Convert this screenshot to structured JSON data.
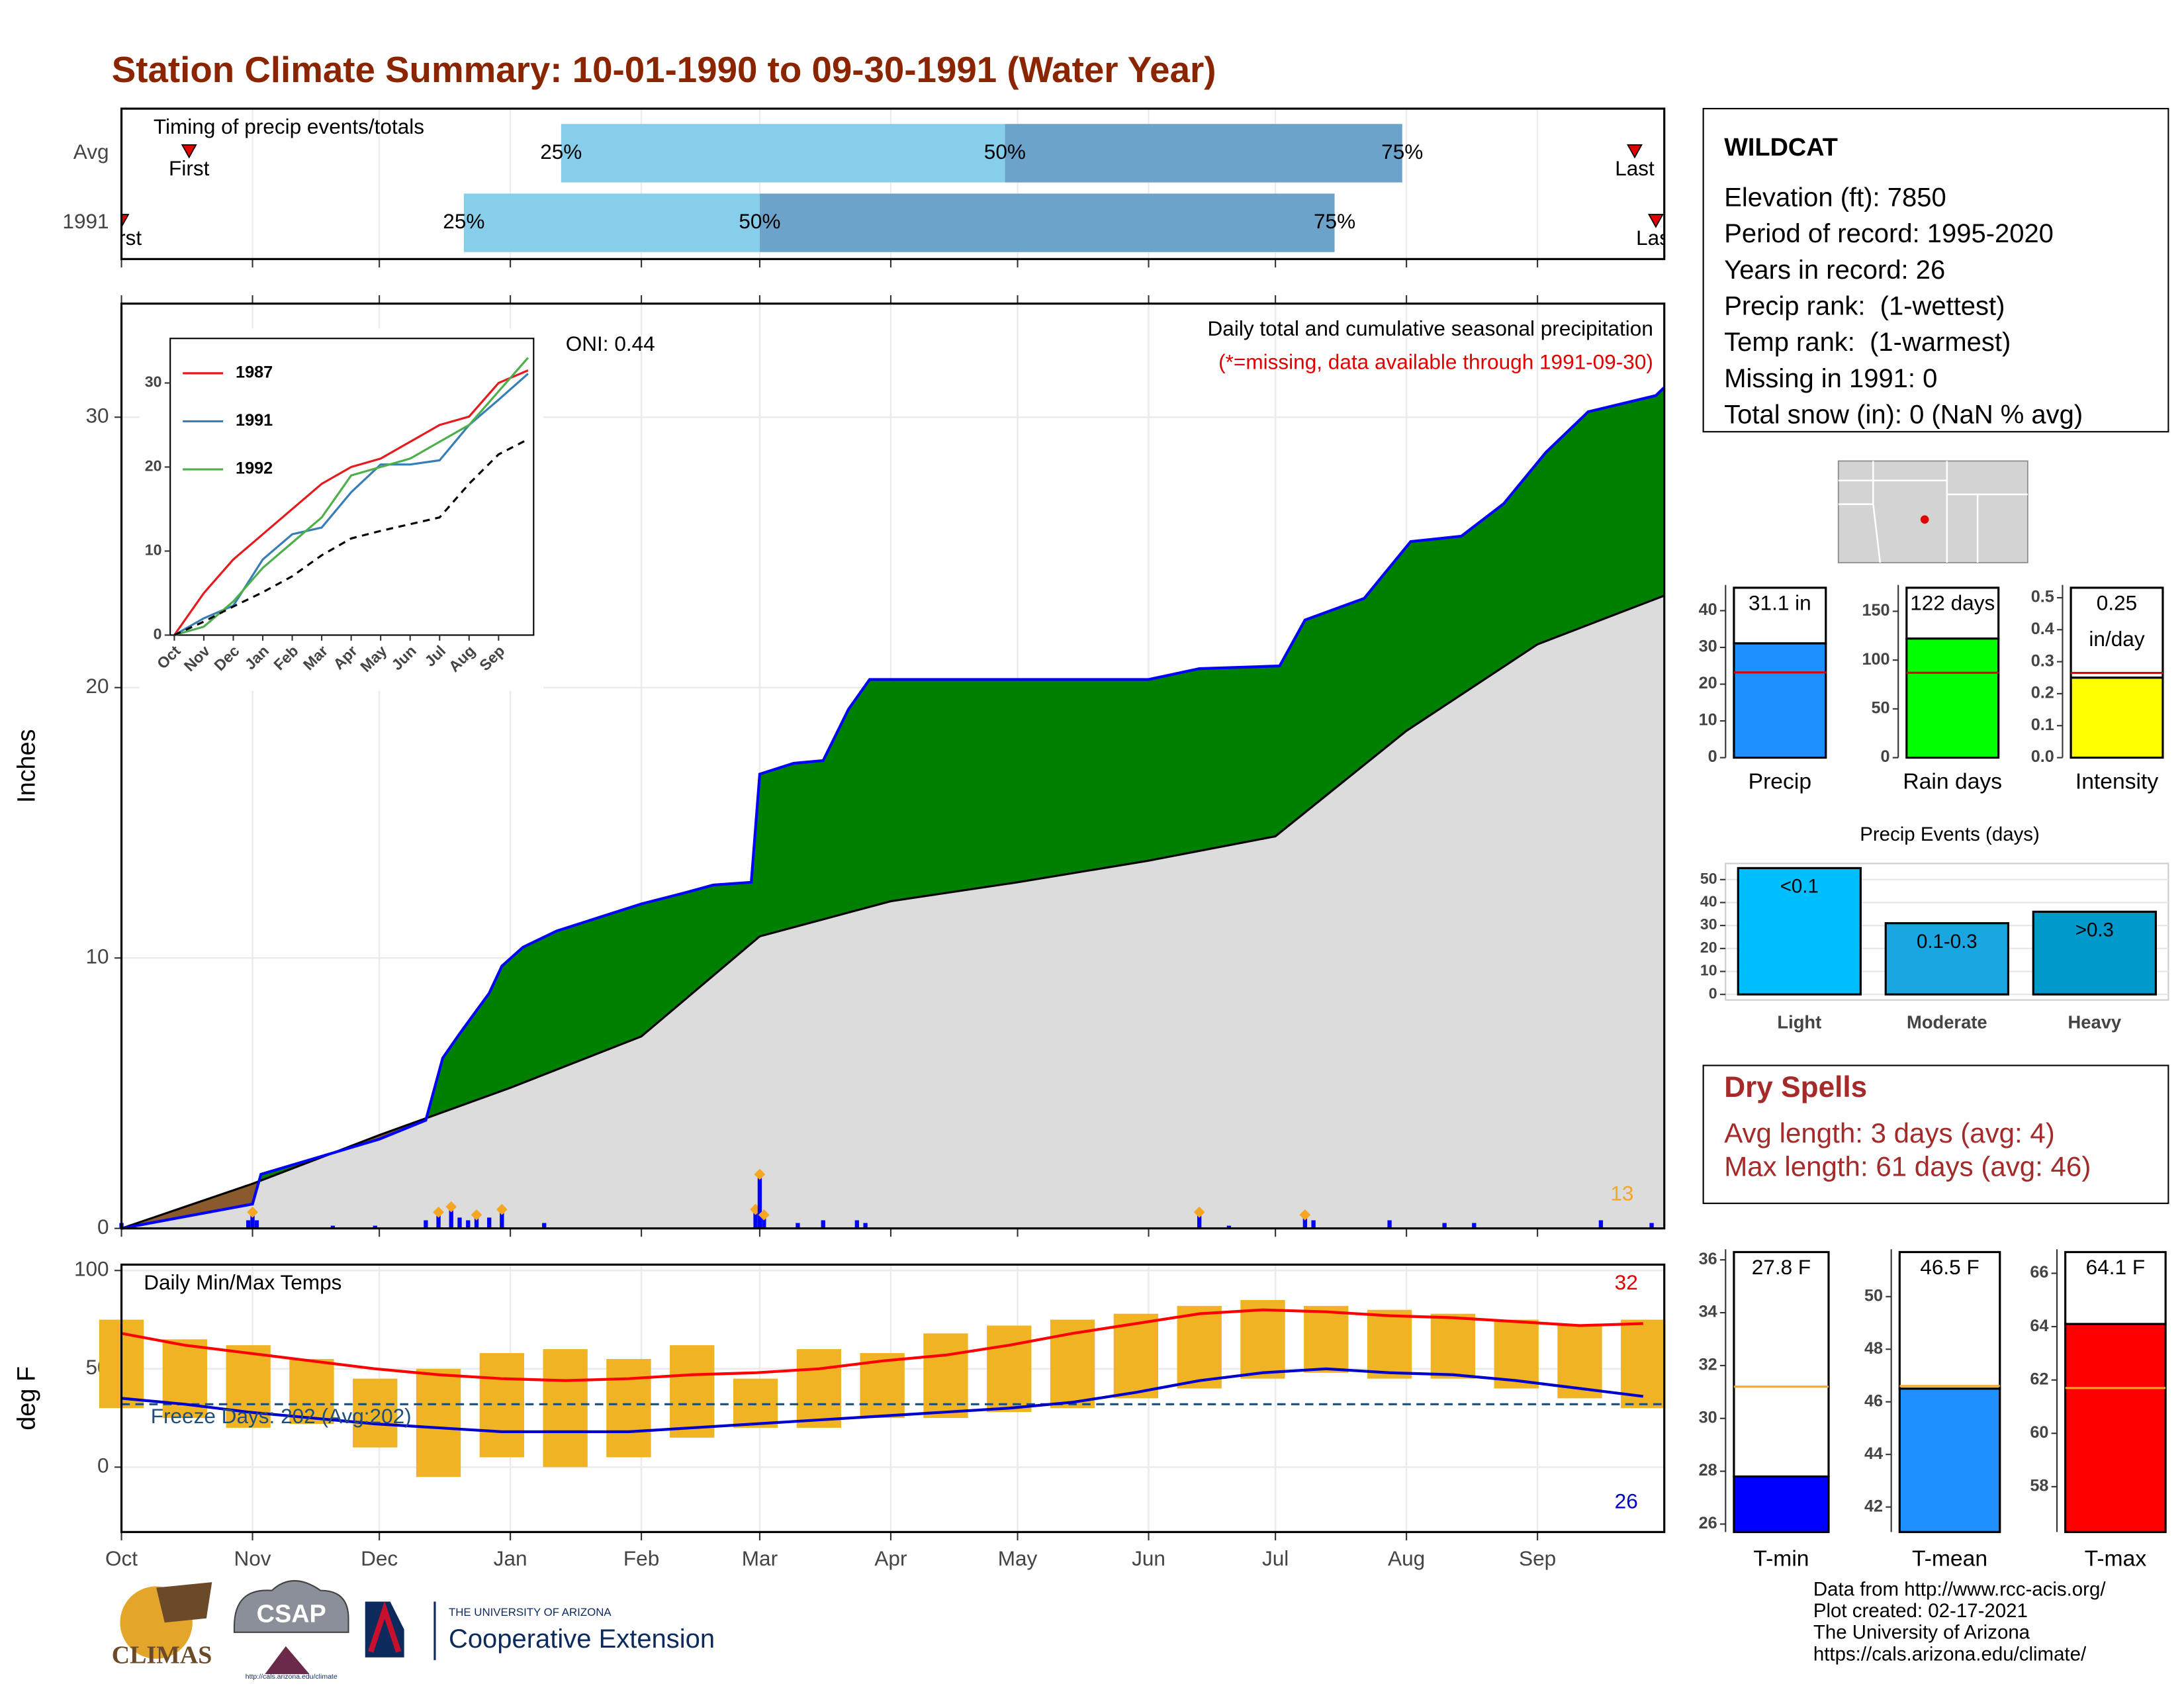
{
  "title": "Station Climate Summary: 10-01-1990 to 09-30-1991 (Water Year)",
  "chart_data": [
    {
      "type": "timing",
      "annotation": "Timing of precip events/totals",
      "categories": [
        "Avg",
        "1991"
      ],
      "xlim": [
        0,
        365
      ],
      "first": [
        16,
        0
      ],
      "q25": [
        104,
        81
      ],
      "q50": [
        209,
        151
      ],
      "q75": [
        303,
        287
      ],
      "last": [
        358,
        363
      ],
      "labels": {
        "first": "First",
        "last": "Last",
        "q25": "25%",
        "q50": "50%",
        "q75": "75%"
      },
      "colors": {
        "q25": "#87ceeb",
        "q50": "#6ca3cb",
        "marker": "#e00000"
      }
    },
    {
      "type": "cumulative",
      "title": "Daily total and cumulative seasonal precipitation",
      "subtitle": "(*=missing, data available through 1991-09-30)",
      "annotation": "ONI: 0.44",
      "count_label": 13,
      "y_label": "Inches",
      "xlim": [
        0,
        365
      ],
      "ylim": [
        0,
        34.2
      ],
      "yticks": [
        0,
        10,
        20,
        30
      ],
      "series": [
        {
          "x": [
            0,
            31,
            33,
            61,
            72,
            76,
            80,
            87,
            90,
            95,
            103,
            113,
            123,
            133,
            140,
            149,
            151,
            159,
            166,
            172,
            177,
            202,
            243,
            255,
            274,
            280,
            294,
            305,
            317,
            327,
            337,
            347,
            363,
            365
          ],
          "values": [
            0,
            0.9,
            2.0,
            3.3,
            4.0,
            6.3,
            7.2,
            8.7,
            9.7,
            10.4,
            11.0,
            11.5,
            12.0,
            12.4,
            12.7,
            12.8,
            16.8,
            17.2,
            17.3,
            19.2,
            20.3,
            20.3,
            20.3,
            20.7,
            20.8,
            22.5,
            23.3,
            25.4,
            25.6,
            26.8,
            28.7,
            30.2,
            30.8,
            31.1
          ],
          "color": "#0000ff",
          "above_color": "#008000",
          "below_color": "#8b5a2b"
        },
        {
          "x": [
            0,
            31,
            61,
            92,
            123,
            151,
            182,
            212,
            243,
            273,
            304,
            335,
            365
          ],
          "values": [
            0,
            1.65,
            3.45,
            5.2,
            7.1,
            10.8,
            12.1,
            12.8,
            13.6,
            14.5,
            18.4,
            21.6,
            23.4
          ],
          "color": "#000000",
          "fill": "#dcdcdc"
        }
      ],
      "daily": {
        "x": [
          0,
          30,
          31,
          32,
          50,
          60,
          72,
          75,
          78,
          80,
          82,
          84,
          87,
          90,
          100,
          150,
          151,
          152,
          160,
          166,
          174,
          176,
          255,
          262,
          280,
          282,
          300,
          313,
          320,
          350,
          362
        ],
        "values": [
          0.2,
          0.3,
          0.6,
          0.3,
          0.1,
          0.1,
          0.3,
          0.6,
          0.8,
          0.4,
          0.3,
          0.5,
          0.4,
          0.7,
          0.2,
          0.7,
          2.0,
          0.5,
          0.2,
          0.3,
          0.3,
          0.2,
          0.6,
          0.1,
          0.5,
          0.3,
          0.3,
          0.2,
          0.2,
          0.3,
          0.2
        ],
        "color": "#0000ff",
        "highlight_color": "#f5a623"
      }
    },
    {
      "type": "line",
      "xlim": [
        -0.14,
        12.19
      ],
      "ylim": [
        0,
        35.3
      ],
      "yticks": [
        0,
        10,
        20,
        30
      ],
      "xticks": [
        {
          "value": 0,
          "label": "Oct"
        },
        {
          "value": 1,
          "label": "Nov"
        },
        {
          "value": 2,
          "label": "Dec"
        },
        {
          "value": 3,
          "label": "Jan"
        },
        {
          "value": 4,
          "label": "Feb"
        },
        {
          "value": 5,
          "label": "Mar"
        },
        {
          "value": 6,
          "label": "Apr"
        },
        {
          "value": 7,
          "label": "May"
        },
        {
          "value": 8,
          "label": "Jun"
        },
        {
          "value": 9,
          "label": "Jul"
        },
        {
          "value": 10,
          "label": "Aug"
        },
        {
          "value": 11,
          "label": "Sep"
        }
      ],
      "x": [
        0,
        1,
        2,
        3,
        4,
        5,
        6,
        7,
        8,
        9,
        10,
        11,
        12
      ],
      "series": [
        {
          "name": "1987",
          "color": "#e41a1c",
          "values": [
            0,
            5,
            9,
            12,
            15,
            18,
            20,
            21,
            23,
            25,
            26,
            30,
            31.5
          ]
        },
        {
          "name": "1991",
          "color": "#377eb8",
          "values": [
            0,
            2,
            3.5,
            9,
            12,
            12.8,
            17,
            20.3,
            20.3,
            20.8,
            25,
            28,
            31.1
          ]
        },
        {
          "name": "1992",
          "color": "#4daf4a",
          "values": [
            0,
            1,
            4,
            8,
            11,
            14,
            19,
            20,
            21,
            23,
            25,
            29,
            33
          ]
        },
        {
          "color": "#000000",
          "dashed": true,
          "values": [
            0,
            1.6,
            3.4,
            5.1,
            7,
            9.5,
            11.5,
            12.4,
            13.2,
            14,
            18,
            21.5,
            23.3
          ]
        }
      ]
    },
    {
      "type": "temps",
      "annotation": "Daily Min/Max Temps",
      "freeze_label": "Freeze Days: 202 (Avg:202)",
      "high_count": 32,
      "low_count": 26,
      "y_label": "deg F",
      "xlim": [
        0,
        365
      ],
      "ylim": [
        -33,
        103
      ],
      "yticks": [
        0,
        50,
        100
      ],
      "reference_line": 32,
      "xticks": [
        {
          "value": 0,
          "label": "Oct"
        },
        {
          "value": 31,
          "label": "Nov"
        },
        {
          "value": 61,
          "label": "Dec"
        },
        {
          "value": 92,
          "label": "Jan"
        },
        {
          "value": 123,
          "label": "Feb"
        },
        {
          "value": 151,
          "label": "Mar"
        },
        {
          "value": 182,
          "label": "Apr"
        },
        {
          "value": 212,
          "label": "May"
        },
        {
          "value": 243,
          "label": "Jun"
        },
        {
          "value": 273,
          "label": "Jul"
        },
        {
          "value": 304,
          "label": "Aug"
        },
        {
          "value": 335,
          "label": "Sep"
        }
      ],
      "x": [
        0,
        15,
        30,
        45,
        60,
        75,
        90,
        105,
        120,
        135,
        150,
        165,
        180,
        195,
        210,
        225,
        240,
        255,
        270,
        285,
        300,
        315,
        330,
        345,
        360
      ],
      "daily_max": [
        75,
        65,
        62,
        55,
        45,
        50,
        58,
        60,
        55,
        62,
        45,
        60,
        58,
        68,
        72,
        75,
        78,
        82,
        85,
        82,
        80,
        78,
        75,
        72,
        75
      ],
      "daily_min": [
        30,
        25,
        20,
        22,
        10,
        -5,
        5,
        0,
        5,
        15,
        20,
        20,
        25,
        25,
        28,
        30,
        35,
        40,
        45,
        48,
        45,
        45,
        40,
        35,
        30
      ],
      "bar_color": "#f0b323",
      "series": [
        {
          "color": "#ff0000",
          "values": [
            68,
            62,
            58,
            54,
            50,
            47,
            45,
            44,
            45,
            47,
            48,
            50,
            54,
            57,
            62,
            68,
            73,
            78,
            80,
            79,
            77,
            76,
            74,
            72,
            73
          ]
        },
        {
          "color": "#0000cc",
          "values": [
            35,
            32,
            28,
            25,
            22,
            20,
            18,
            18,
            18,
            20,
            22,
            24,
            26,
            28,
            30,
            33,
            38,
            44,
            48,
            50,
            48,
            47,
            44,
            40,
            36
          ]
        }
      ]
    },
    {
      "type": "summary_bar",
      "label": "Precip",
      "value": 31.1,
      "value_label": [
        "31.1 in"
      ],
      "avg": 23.2,
      "ylim": [
        0,
        47
      ],
      "yticks": [
        0,
        10,
        20,
        30,
        40
      ],
      "color": "#1e90ff",
      "avg_color": "#e00000"
    },
    {
      "type": "summary_bar",
      "label": "Rain days",
      "value": 122,
      "value_label": [
        "122 days"
      ],
      "avg": 87,
      "ylim": [
        0,
        177
      ],
      "yticks": [
        0,
        50,
        100,
        150
      ],
      "color": "#00ff00",
      "avg_color": "#e00000"
    },
    {
      "type": "summary_bar",
      "label": "Intensity",
      "value": 0.25,
      "value_label": [
        "0.25",
        "in/day"
      ],
      "avg": 0.265,
      "ylim": [
        0,
        0.54
      ],
      "yticks": [
        {
          "value": 0,
          "label": "0.0"
        },
        0.1,
        0.2,
        0.3,
        0.4,
        0.5
      ],
      "color": "#ffff00",
      "avg_color": "#e00000"
    },
    {
      "type": "bar",
      "title": "Precip Events (days)",
      "categories": [
        "Light",
        "Moderate",
        "Heavy"
      ],
      "values": [
        55,
        31,
        36
      ],
      "bin_labels": [
        "<0.1",
        "0.1-0.3",
        ">0.3"
      ],
      "ylim": [
        0,
        57
      ],
      "yticks": [
        0,
        10,
        20,
        30,
        40,
        50
      ],
      "colors": [
        "#00bfff",
        "#1aa6e0",
        "#0099cc"
      ]
    },
    {
      "type": "summary_bar",
      "label": "T-min",
      "value": 27.8,
      "value_label": [
        "27.8 F"
      ],
      "avg": 31.2,
      "ylim": [
        25.7,
        36.4
      ],
      "yticks": [
        26,
        28,
        30,
        32,
        34,
        36
      ],
      "color": "#0000ff",
      "avg_color": "#f5a623"
    },
    {
      "type": "summary_bar",
      "label": "T-mean",
      "value": 46.5,
      "value_label": [
        "46.5 F"
      ],
      "avg": 46.6,
      "ylim": [
        41.05,
        51.8
      ],
      "yticks": [
        42,
        44,
        46,
        48,
        50
      ],
      "color": "#1e90ff",
      "avg_color": "#f5a623"
    },
    {
      "type": "summary_bar",
      "label": "T-max",
      "value": 64.1,
      "value_label": [
        "64.1 F"
      ],
      "avg": 61.7,
      "ylim": [
        56.3,
        66.9
      ],
      "yticks": [
        58,
        60,
        62,
        64,
        66
      ],
      "color": "#ff0000",
      "avg_color": "#f5a623"
    }
  ],
  "station": {
    "name": "WILDCAT",
    "lines": [
      "Elevation (ft): 7850",
      "Period of record: 1995-2020",
      "Years in record: 26",
      "Precip rank:  (1-wettest)",
      "Temp rank:  (1-warmest)",
      "Missing in 1991: 0",
      "Total snow (in): 0 (NaN % avg)"
    ]
  },
  "dry_spells": {
    "title": "Dry Spells",
    "lines": [
      "Avg length: 3 days (avg: 4)",
      "Max length: 61 days (avg: 46)"
    ]
  },
  "footer": [
    "Data from http://www.rcc-acis.org/",
    "Plot created: 02-17-2021",
    "The University of Arizona",
    "https://cals.arizona.edu/climate/"
  ],
  "logos": {
    "climas": "CLIMAS",
    "csap": "CSAP",
    "csap_url": "http://cals.arizona.edu/climate",
    "ua": "THE UNIVERSITY OF ARIZONA",
    "extension": "Cooperative Extension"
  }
}
